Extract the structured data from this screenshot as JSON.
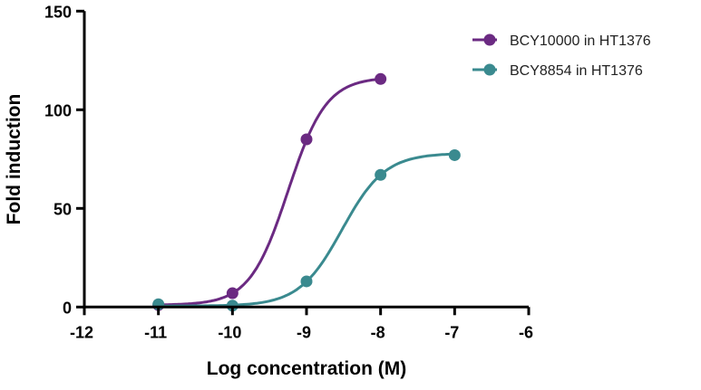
{
  "chart_data": {
    "type": "line",
    "title": "",
    "xlabel": "Log concentration (M)",
    "ylabel": "Fold induction",
    "xlim": [
      -12,
      -6
    ],
    "ylim": [
      0,
      150
    ],
    "xticks": [
      -12,
      -11,
      -10,
      -9,
      -8,
      -7,
      -6
    ],
    "yticks": [
      0,
      50,
      100,
      150
    ],
    "grid": false,
    "legend_position": "top-right",
    "series": [
      {
        "name": "BCY10000 in HT1376",
        "color": "#6b2a82",
        "x": [
          -11,
          -10,
          -9,
          -8
        ],
        "y": [
          1,
          7,
          85,
          115.6
        ]
      },
      {
        "name": "BCY8854 in HT1376",
        "color": "#3a8a8f",
        "x": [
          -11,
          -10,
          -9,
          -8,
          -7
        ],
        "y": [
          1.4,
          0.7,
          13,
          67,
          77
        ]
      }
    ]
  }
}
